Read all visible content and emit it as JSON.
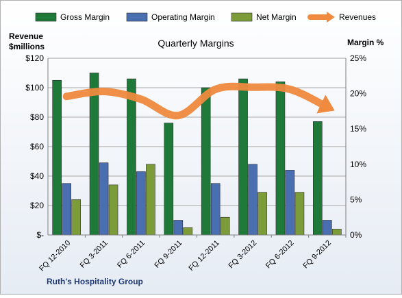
{
  "chart_data": {
    "type": "bar",
    "title": "Quarterly Margins",
    "footer": "Ruth's Hospitality Group",
    "y_left_label": [
      "Revenue",
      "$millions"
    ],
    "y_right_label": "Margin %",
    "y_left_range": [
      0,
      120
    ],
    "y_right_range": [
      0,
      25
    ],
    "y_left_ticks": [
      "$-",
      "$20",
      "$40",
      "$60",
      "$80",
      "$100",
      "$120"
    ],
    "y_right_ticks": [
      "0%",
      "5%",
      "10%",
      "15%",
      "20%",
      "25%"
    ],
    "categories": [
      "FQ 12-2010",
      "FQ 3-2011",
      "FQ 6-2011",
      "FQ 9-2011",
      "FQ 12-2011",
      "FQ 3-2012",
      "FQ 6-2012",
      "FQ 9-2012"
    ],
    "series": [
      {
        "name": "Gross Margin",
        "axis": "left",
        "color": "#1f7a3a",
        "values": [
          105,
          110,
          106,
          76,
          100,
          106,
          104,
          77
        ]
      },
      {
        "name": "Operating Margin",
        "axis": "left",
        "color": "#4a6fb0",
        "values": [
          35,
          49,
          43,
          10,
          35,
          48,
          44,
          10
        ]
      },
      {
        "name": "Net Margin",
        "axis": "left",
        "color": "#7c9c3a",
        "values": [
          24,
          34,
          48,
          5,
          12,
          29,
          29,
          4
        ]
      },
      {
        "name": "Revenues",
        "axis": "right",
        "color": "#ef8a3e",
        "type": "line",
        "values": [
          19.6,
          20.3,
          19.2,
          16.9,
          20.6,
          20.9,
          20.6,
          18.1
        ]
      }
    ],
    "grid": true,
    "legend_position": "top"
  }
}
